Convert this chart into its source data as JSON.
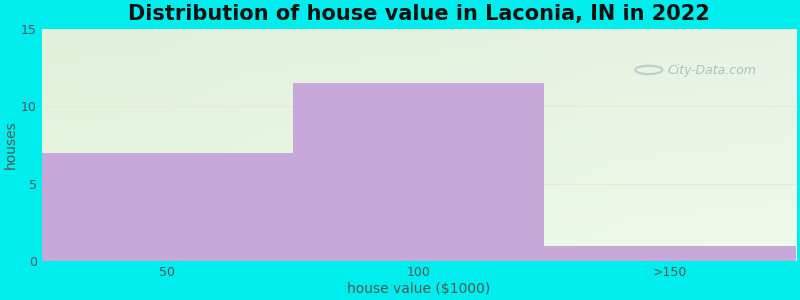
{
  "title": "Distribution of house value in Laconia, IN in 2022",
  "xlabel": "house value ($1000)",
  "ylabel": "houses",
  "categories": [
    "50",
    "100",
    ">150"
  ],
  "values": [
    7,
    11.5,
    1
  ],
  "bar_color": "#c8a8d8",
  "bar_edge_color": "#c8a8d8",
  "ylim": [
    0,
    15
  ],
  "yticks": [
    0,
    5,
    10,
    15
  ],
  "background_outer": "#00EEEE",
  "plot_bg_left_top": "#e8f5e0",
  "plot_bg_right_bottom": "#f5fbf5",
  "title_fontsize": 15,
  "axis_label_fontsize": 10,
  "tick_fontsize": 9,
  "bar_width": 1.0,
  "watermark": "City-Data.com",
  "x_positions": [
    0.5,
    1.5,
    2.5
  ],
  "xlim": [
    0,
    3
  ],
  "grid_color": "#e8ead0",
  "grid_linewidth": 0.8
}
